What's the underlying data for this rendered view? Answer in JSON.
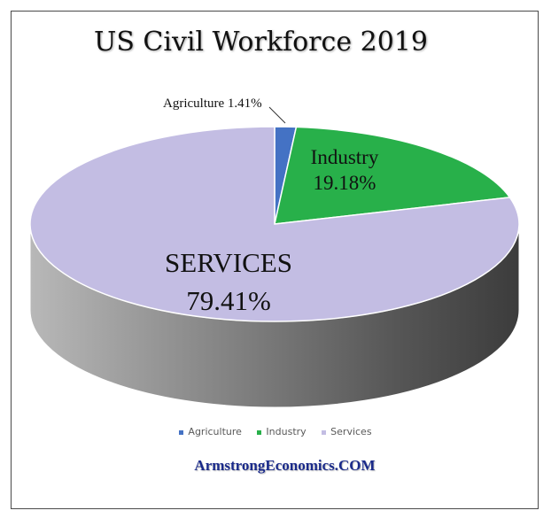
{
  "chart_data": {
    "type": "pie",
    "title": "US Civil Workforce 2019",
    "categories": [
      "Agriculture",
      "Industry",
      "Services"
    ],
    "values": [
      1.41,
      19.18,
      79.41
    ],
    "labels": [
      "Agriculture 1.41%",
      "Industry 19.18%",
      "SERVICES 79.41%"
    ],
    "colors": [
      "#4472c4",
      "#28b04a",
      "#c3bde3"
    ],
    "legend": [
      "Agriculture",
      "Industry",
      "Services"
    ],
    "legend_position": "bottom"
  },
  "slice_labels": {
    "agriculture": "Agriculture 1.41%",
    "industry_name": "Industry",
    "industry_pct": "19.18%",
    "services_name": "SERVICES",
    "services_pct": "79.41%"
  },
  "source": "ArmstrongEconomics.COM"
}
